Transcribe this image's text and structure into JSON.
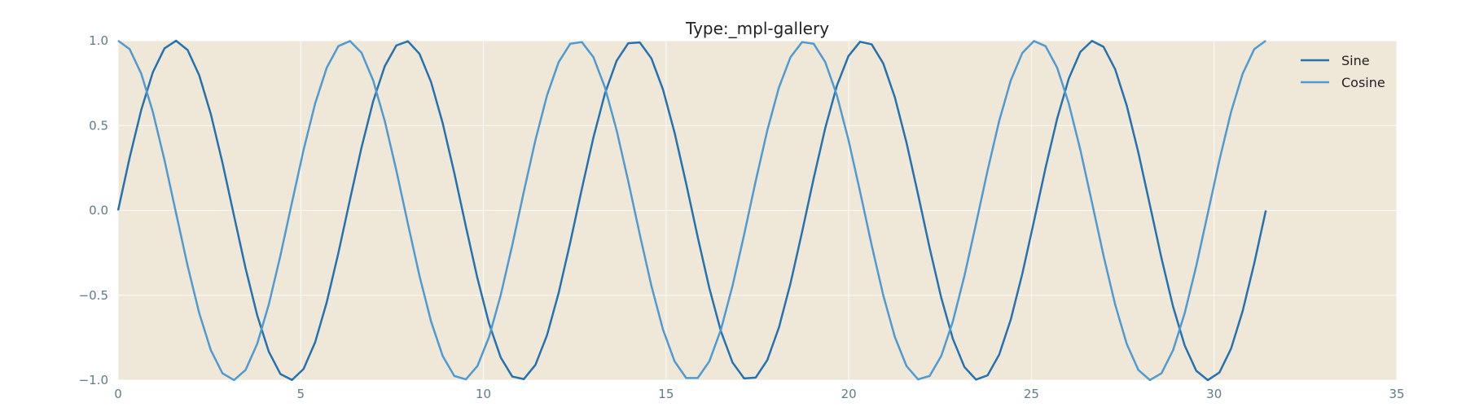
{
  "chart_data": {
    "type": "line",
    "title": "Type:_mpl-gallery",
    "xlabel": "",
    "ylabel": "",
    "xlim": [
      0,
      35
    ],
    "ylim": [
      -1.0,
      1.0
    ],
    "xticks": [
      0,
      5,
      10,
      15,
      20,
      25,
      30,
      35
    ],
    "xtick_labels": [
      "0",
      "5",
      "10",
      "15",
      "20",
      "25",
      "30",
      "35"
    ],
    "yticks": [
      1.0,
      0.5,
      0.0,
      -0.5,
      -1.0
    ],
    "ytick_labels": [
      "1.0",
      "0.5",
      "0.0",
      "−0.5",
      "−1.0"
    ],
    "grid": true,
    "legend_position": "top-right",
    "x_range": [
      0,
      31.4159
    ],
    "num_points": 100,
    "series": [
      {
        "name": "Sine",
        "function": "sin(x)",
        "color": "#2572b0"
      },
      {
        "name": "Cosine",
        "function": "cos(x)",
        "color": "#4f9bd1"
      }
    ],
    "colors": {
      "plot_background": "#efe7d7",
      "grid": "#ffffff",
      "tick_text": "#5f7c8a"
    }
  }
}
